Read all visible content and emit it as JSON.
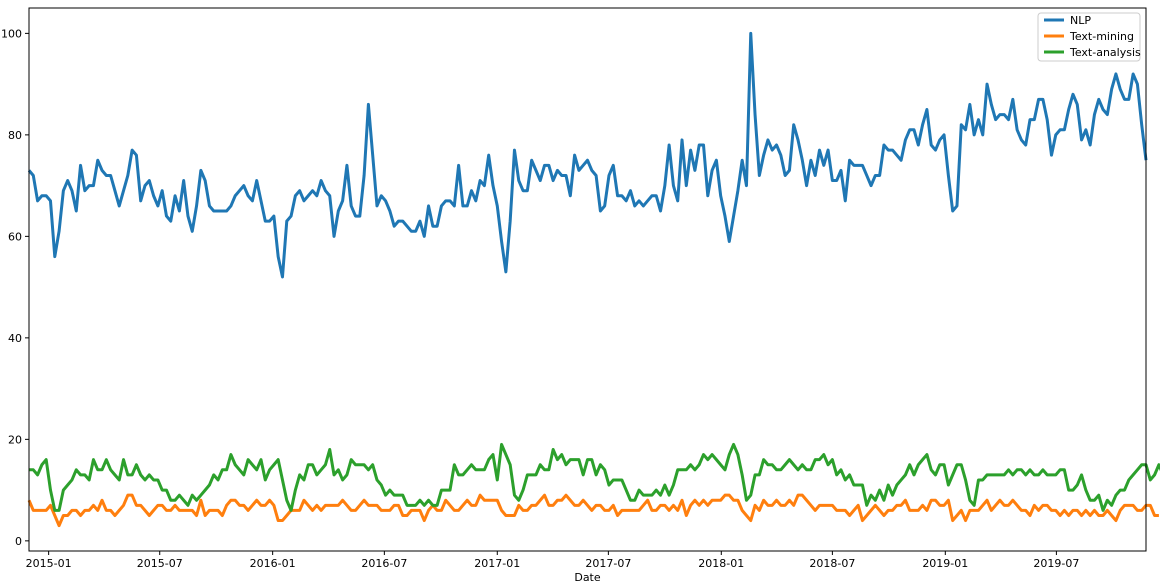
{
  "chart_data": {
    "type": "line",
    "title": "",
    "xlabel": "Date",
    "ylabel": "",
    "x_start": "2014-11-30",
    "x_end": "2019-11-24",
    "x_step": "weekly",
    "xlim": [
      "2014-11-30",
      "2019-11-24"
    ],
    "ylim": [
      -2,
      105
    ],
    "grid": false,
    "legend_position": "top-right",
    "x_ticks": [
      {
        "date": "2015-01-01",
        "label": "2015-01"
      },
      {
        "date": "2015-07-01",
        "label": "2015-07"
      },
      {
        "date": "2016-01-01",
        "label": "2016-01"
      },
      {
        "date": "2016-07-01",
        "label": "2016-07"
      },
      {
        "date": "2017-01-01",
        "label": "2017-01"
      },
      {
        "date": "2017-07-01",
        "label": "2017-07"
      },
      {
        "date": "2018-01-01",
        "label": "2018-01"
      },
      {
        "date": "2018-07-01",
        "label": "2018-07"
      },
      {
        "date": "2019-01-01",
        "label": "2019-01"
      },
      {
        "date": "2019-07-01",
        "label": "2019-07"
      }
    ],
    "y_ticks": [
      0,
      20,
      40,
      60,
      80,
      100
    ],
    "series": [
      {
        "name": "NLP",
        "color": "#1f77b4",
        "values": [
          73,
          72,
          67,
          68,
          68,
          67,
          56,
          61,
          69,
          71,
          69,
          65,
          74,
          69,
          70,
          70,
          75,
          73,
          72,
          72,
          69,
          66,
          69,
          72,
          77,
          76,
          67,
          70,
          71,
          68,
          66,
          69,
          64,
          63,
          68,
          65,
          71,
          64,
          61,
          66,
          73,
          71,
          66,
          65,
          65,
          65,
          65,
          66,
          68,
          69,
          70,
          68,
          67,
          71,
          67,
          63,
          63,
          64,
          56,
          52,
          63,
          64,
          68,
          69,
          67,
          68,
          69,
          68,
          71,
          69,
          68,
          60,
          65,
          67,
          74,
          66,
          64,
          64,
          72,
          86,
          76,
          66,
          68,
          67,
          65,
          62,
          63,
          63,
          62,
          61,
          61,
          63,
          60,
          66,
          62,
          62,
          66,
          67,
          67,
          66,
          74,
          66,
          66,
          69,
          67,
          71,
          70,
          76,
          70,
          66,
          59,
          53,
          63,
          77,
          71,
          69,
          69,
          75,
          73,
          71,
          74,
          74,
          71,
          73,
          72,
          72,
          68,
          76,
          73,
          74,
          75,
          73,
          72,
          65,
          66,
          72,
          74,
          68,
          68,
          67,
          69,
          66,
          67,
          66,
          67,
          68,
          68,
          65,
          70,
          78,
          70,
          67,
          79,
          70,
          77,
          73,
          78,
          78,
          68,
          73,
          75,
          68,
          64,
          59,
          64,
          69,
          75,
          70,
          100,
          84,
          72,
          76,
          79,
          77,
          78,
          76,
          72,
          73,
          82,
          79,
          75,
          70,
          75,
          72,
          77,
          74,
          77,
          71,
          71,
          73,
          67,
          75,
          74,
          74,
          74,
          72,
          70,
          72,
          72,
          78,
          77,
          77,
          76,
          75,
          79,
          81,
          81,
          78,
          82,
          85,
          78,
          77,
          79,
          80,
          72,
          65,
          66,
          82,
          81,
          86,
          80,
          83,
          80,
          90,
          86,
          83,
          84,
          84,
          83,
          87,
          81,
          79,
          78,
          83,
          83,
          87,
          87,
          83,
          76,
          80,
          81,
          81,
          85,
          88,
          86,
          79,
          81,
          78,
          84,
          87,
          85,
          84,
          89,
          92,
          89,
          87,
          87,
          92,
          90,
          82,
          75
        ]
      },
      {
        "name": "Text-mining",
        "color": "#ff7f0e",
        "values": [
          8,
          6,
          6,
          6,
          6,
          7,
          5,
          3,
          5,
          5,
          6,
          6,
          5,
          6,
          6,
          7,
          6,
          8,
          6,
          6,
          5,
          6,
          7,
          9,
          9,
          7,
          7,
          6,
          5,
          6,
          7,
          7,
          6,
          6,
          7,
          6,
          6,
          6,
          6,
          5,
          8,
          5,
          6,
          6,
          6,
          5,
          7,
          8,
          8,
          7,
          7,
          6,
          7,
          8,
          7,
          7,
          8,
          7,
          4,
          4,
          5,
          6,
          6,
          6,
          8,
          7,
          6,
          7,
          6,
          7,
          7,
          7,
          7,
          8,
          7,
          6,
          6,
          7,
          8,
          7,
          7,
          7,
          6,
          6,
          6,
          7,
          7,
          5,
          5,
          6,
          6,
          6,
          4,
          6,
          7,
          6,
          6,
          8,
          7,
          6,
          6,
          7,
          8,
          7,
          7,
          9,
          8,
          8,
          8,
          8,
          6,
          5,
          5,
          5,
          7,
          6,
          6,
          7,
          7,
          8,
          9,
          7,
          7,
          8,
          8,
          9,
          8,
          7,
          7,
          8,
          7,
          6,
          7,
          7,
          6,
          6,
          7,
          5,
          6,
          6,
          6,
          6,
          6,
          7,
          8,
          6,
          6,
          7,
          7,
          6,
          7,
          6,
          8,
          5,
          7,
          8,
          7,
          8,
          7,
          8,
          8,
          8,
          9,
          9,
          8,
          8,
          6,
          5,
          4,
          7,
          6,
          8,
          7,
          7,
          8,
          7,
          7,
          8,
          7,
          9,
          9,
          8,
          7,
          6,
          7,
          7,
          7,
          7,
          6,
          6,
          6,
          5,
          6,
          7,
          4,
          5,
          6,
          7,
          6,
          5,
          6,
          6,
          7,
          7,
          8,
          6,
          6,
          6,
          7,
          6,
          8,
          8,
          7,
          7,
          8,
          4,
          5,
          6,
          4,
          6,
          6,
          6,
          7,
          8,
          6,
          7,
          8,
          7,
          7,
          8,
          7,
          6,
          6,
          5,
          7,
          6,
          7,
          7,
          6,
          6,
          5,
          6,
          5,
          6,
          6,
          5,
          6,
          5,
          6,
          5,
          5,
          6,
          5,
          4,
          6,
          7,
          7,
          7,
          6,
          6,
          7,
          7,
          5,
          5
        ]
      },
      {
        "name": "Text-analysis",
        "color": "#2ca02c",
        "values": [
          14,
          14,
          13,
          15,
          16,
          10,
          6,
          6,
          10,
          11,
          12,
          14,
          13,
          13,
          12,
          16,
          14,
          14,
          16,
          14,
          13,
          12,
          16,
          13,
          13,
          15,
          13,
          12,
          13,
          12,
          12,
          10,
          10,
          8,
          8,
          9,
          8,
          7,
          9,
          8,
          9,
          10,
          11,
          13,
          12,
          14,
          14,
          17,
          15,
          14,
          13,
          16,
          15,
          14,
          16,
          12,
          14,
          15,
          16,
          12,
          8,
          6,
          10,
          13,
          12,
          15,
          15,
          13,
          14,
          15,
          18,
          13,
          14,
          12,
          13,
          16,
          15,
          15,
          15,
          14,
          15,
          12,
          11,
          9,
          10,
          9,
          9,
          9,
          7,
          7,
          7,
          8,
          7,
          8,
          7,
          7,
          10,
          10,
          10,
          15,
          13,
          13,
          14,
          15,
          14,
          14,
          14,
          16,
          17,
          12,
          19,
          17,
          15,
          9,
          8,
          10,
          13,
          13,
          13,
          15,
          14,
          14,
          18,
          16,
          17,
          15,
          16,
          16,
          16,
          13,
          16,
          16,
          13,
          15,
          14,
          11,
          12,
          12,
          12,
          10,
          8,
          8,
          10,
          9,
          9,
          9,
          10,
          9,
          11,
          9,
          11,
          14,
          14,
          14,
          15,
          14,
          15,
          17,
          16,
          17,
          16,
          15,
          14,
          17,
          19,
          17,
          13,
          8,
          9,
          13,
          13,
          16,
          15,
          15,
          14,
          14,
          15,
          16,
          15,
          14,
          15,
          14,
          14,
          16,
          16,
          17,
          15,
          16,
          13,
          14,
          12,
          13,
          11,
          11,
          11,
          7,
          9,
          8,
          10,
          8,
          11,
          9,
          11,
          12,
          13,
          15,
          13,
          15,
          16,
          17,
          14,
          13,
          15,
          15,
          11,
          13,
          15,
          15,
          12,
          8,
          7,
          12,
          12,
          13,
          13,
          13,
          13,
          13,
          14,
          13,
          14,
          14,
          13,
          14,
          13,
          13,
          14,
          13,
          13,
          13,
          14,
          14,
          10,
          10,
          11,
          13,
          10,
          8,
          8,
          9,
          6,
          8,
          7,
          9,
          10,
          10,
          12,
          13,
          14,
          15,
          15,
          12,
          13,
          15,
          13,
          9
        ]
      }
    ]
  }
}
